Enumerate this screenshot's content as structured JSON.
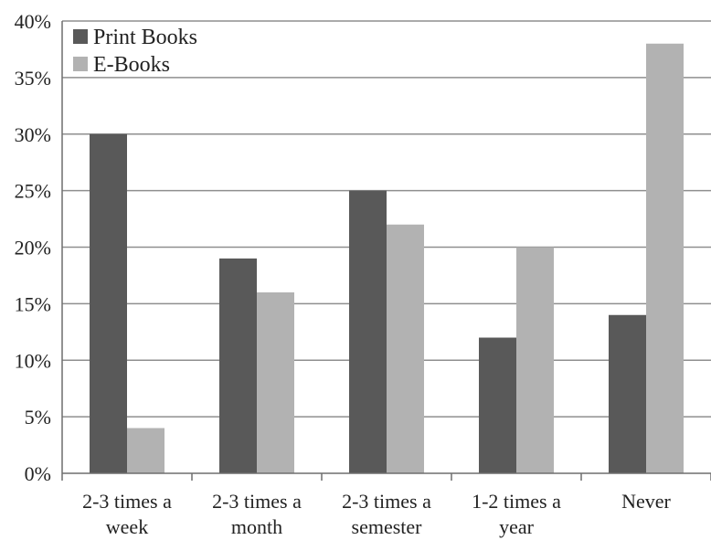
{
  "chart_data": {
    "type": "bar",
    "categories": [
      [
        "2-3 times a",
        "week"
      ],
      [
        "2-3 times a",
        "month"
      ],
      [
        "2-3 times a",
        "semester"
      ],
      [
        "1-2 times a",
        "year"
      ],
      [
        "Never"
      ]
    ],
    "series": [
      {
        "name": "Print Books",
        "color": "#595959",
        "values": [
          30,
          19,
          25,
          12,
          14
        ]
      },
      {
        "name": "E-Books",
        "color": "#b2b2b2",
        "values": [
          4,
          16,
          22,
          20,
          38
        ]
      }
    ],
    "y_ticks": [
      "0%",
      "5%",
      "10%",
      "15%",
      "20%",
      "25%",
      "30%",
      "35%",
      "40%"
    ],
    "ylim": [
      0,
      40
    ],
    "grid": true,
    "legend_position": "top-left"
  }
}
